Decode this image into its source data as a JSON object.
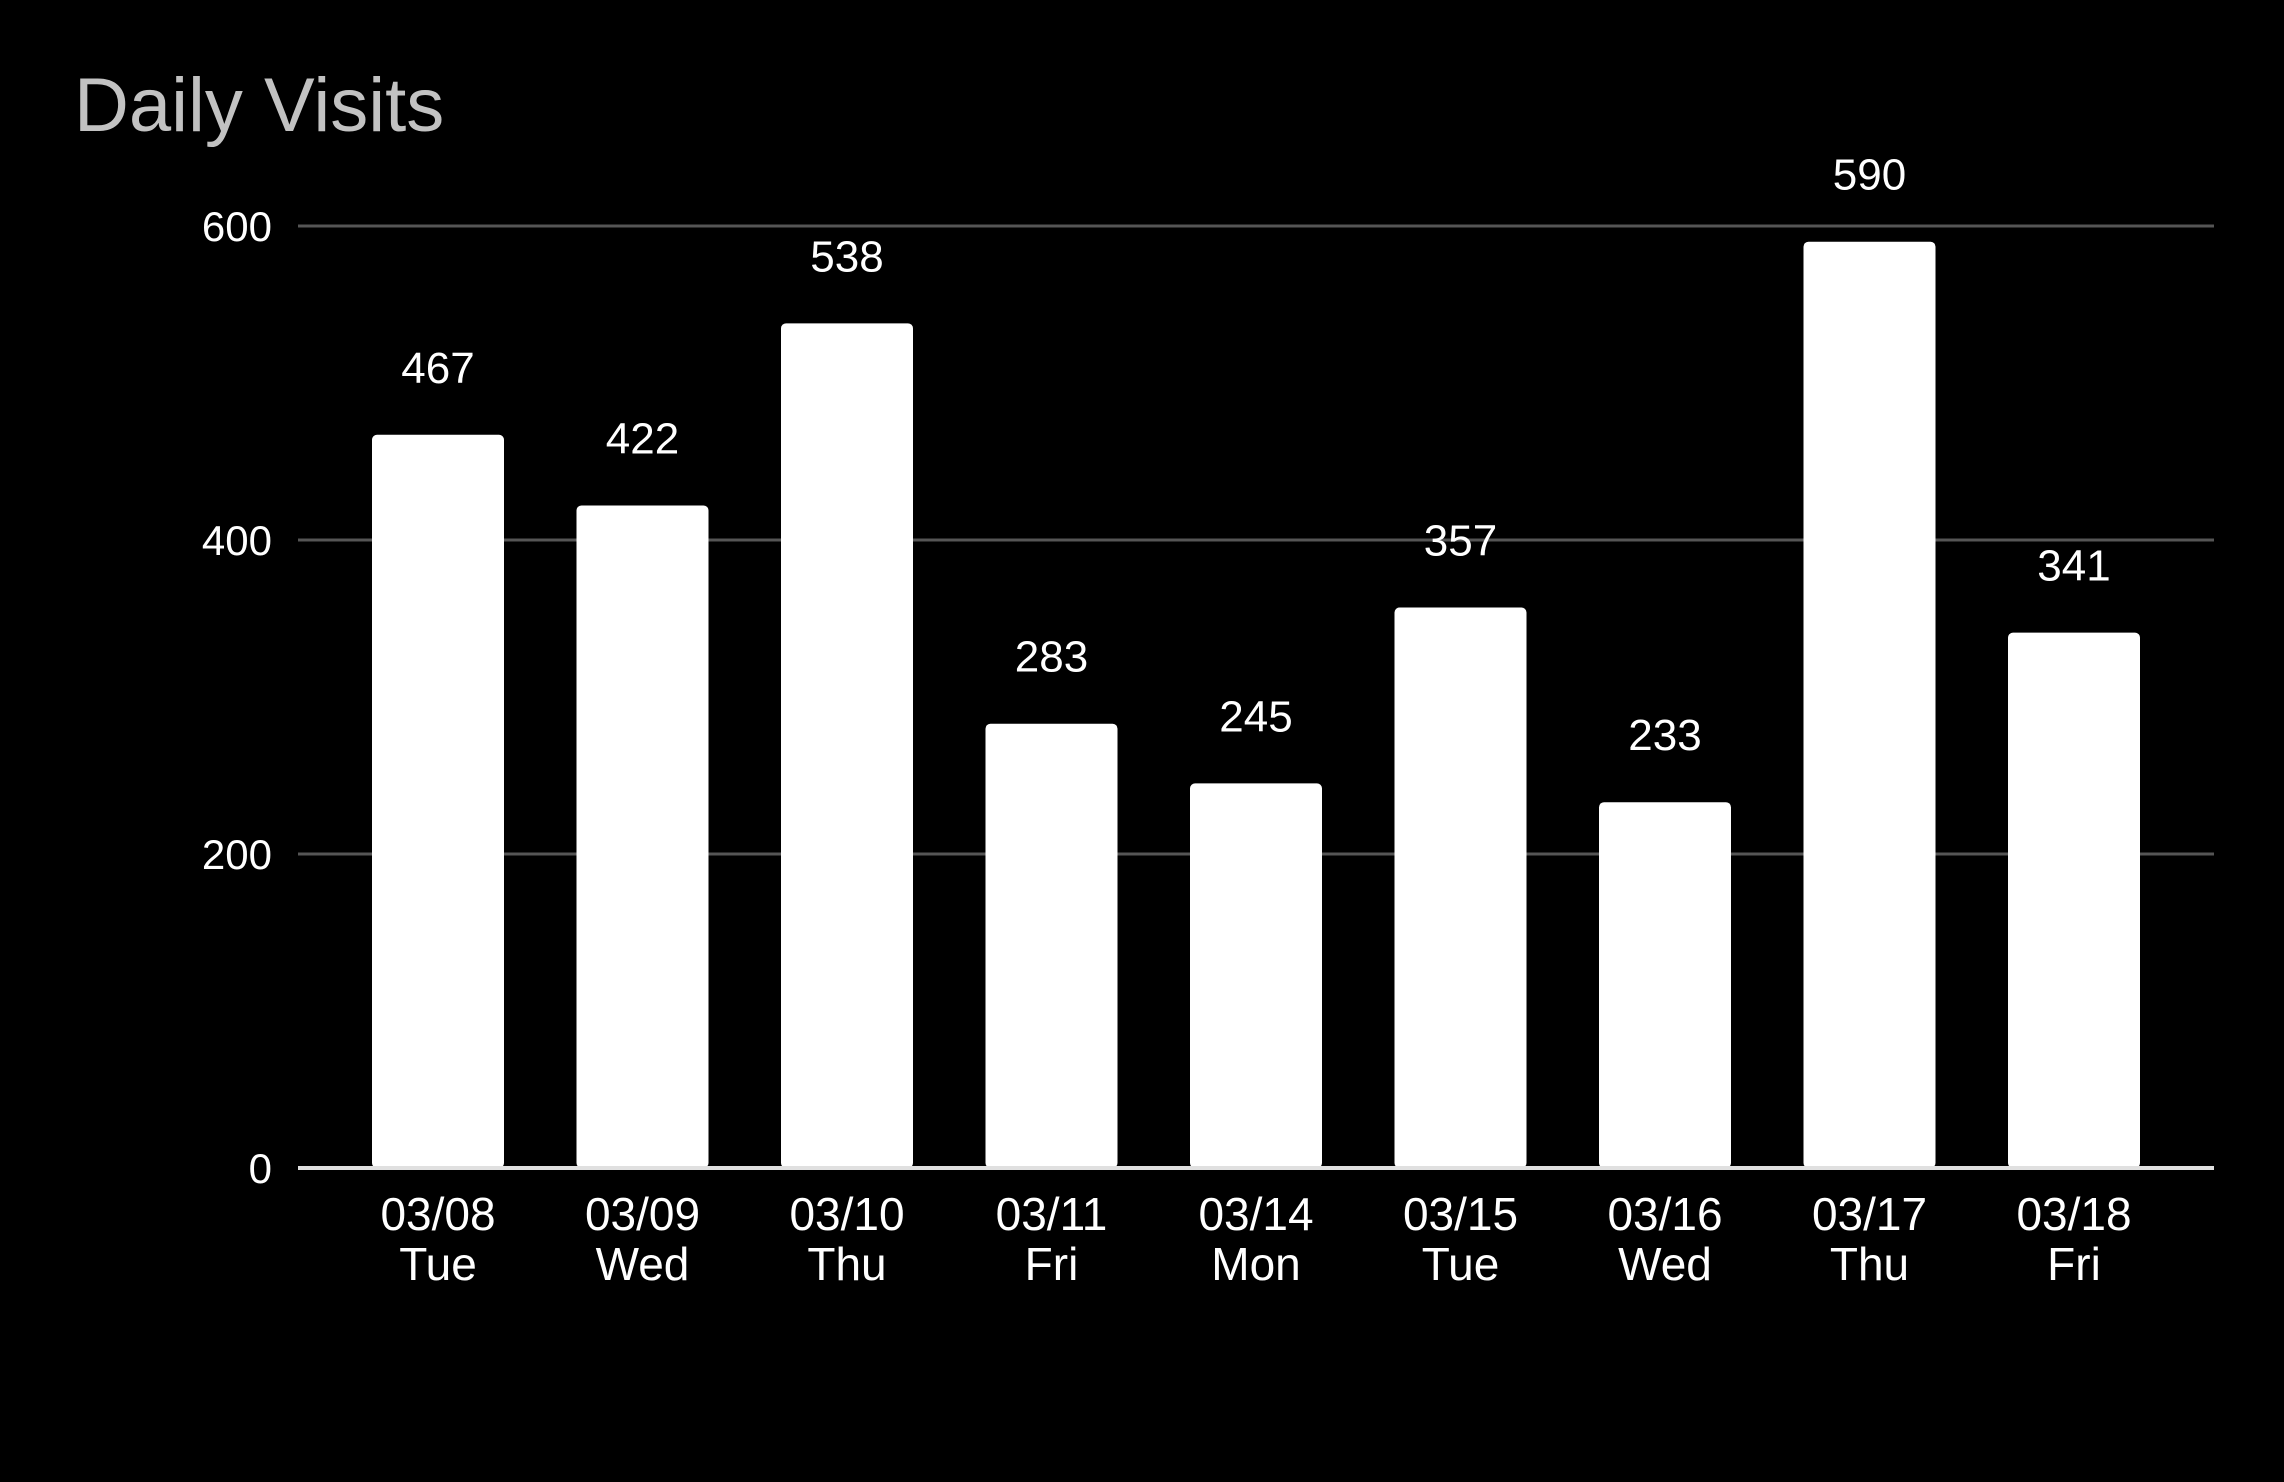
{
  "chart_data": {
    "type": "bar",
    "title": "Daily Visits",
    "xlabel": "",
    "ylabel": "",
    "categories": [
      [
        "03/08",
        "Tue"
      ],
      [
        "03/09",
        "Wed"
      ],
      [
        "03/10",
        "Thu"
      ],
      [
        "03/11",
        "Fri"
      ],
      [
        "03/14",
        "Mon"
      ],
      [
        "03/15",
        "Tue"
      ],
      [
        "03/16",
        "Wed"
      ],
      [
        "03/17",
        "Thu"
      ],
      [
        "03/18",
        "Fri"
      ]
    ],
    "values": [
      467,
      422,
      538,
      283,
      245,
      357,
      233,
      590,
      341
    ],
    "data_labels": [
      "467",
      "422",
      "538",
      "283",
      "245",
      "357",
      "233",
      "590",
      "341"
    ],
    "ylim": [
      0,
      600
    ],
    "yticks": [
      0,
      200,
      400,
      600
    ],
    "ytick_labels": [
      "0",
      "200",
      "400",
      "600"
    ],
    "grid": true,
    "legend": "none",
    "colors": {
      "background": "#000000",
      "bar": "#ffffff",
      "title": "#c2c2c2",
      "text": "#ffffff",
      "grid": "#555555",
      "axis": "#e0e0e0"
    }
  }
}
